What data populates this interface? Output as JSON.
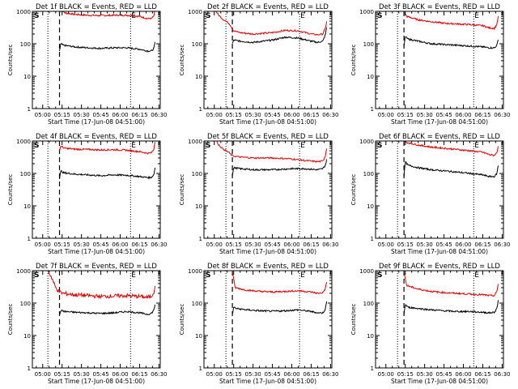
{
  "figure": {
    "common": {
      "xlabel": "Start Time (17-Jun-08 04:51:00)",
      "ylabel": "Counts/sec",
      "x_tick_labels": [
        "05:00",
        "05:15",
        "05:30",
        "05:45",
        "06:00",
        "06:15",
        "06:30"
      ],
      "y_tick_labels": [
        "1",
        "10",
        "100",
        "1000"
      ],
      "marker_S": "S",
      "marker_E": "E",
      "series_colors": {
        "events": "#000000",
        "lld": "#e00000"
      }
    }
  },
  "chart_data": [
    {
      "type": "line",
      "title": "Det 1f BLACK = Events, RED = LLD",
      "ylog": true,
      "ylim": [
        1,
        1000
      ],
      "x_ticks": [
        "05:00",
        "05:15",
        "05:30",
        "05:45",
        "06:00",
        "06:15",
        "06:30"
      ],
      "dotted_lines_x": [
        "05:04",
        "06:08"
      ],
      "dashed_line_x": "05:13",
      "series": [
        {
          "color": "#e00000",
          "x": [
            "05:13",
            "05:14",
            "05:17",
            "05:25",
            "05:35",
            "05:45",
            "05:55",
            "06:05",
            "06:15",
            "06:21",
            "06:24",
            "06:26",
            "06:27"
          ],
          "values": [
            900,
            1200,
            900,
            800,
            760,
            740,
            760,
            760,
            700,
            600,
            600,
            700,
            1100
          ]
        },
        {
          "color": "#000000",
          "x": [
            "05:13",
            "05:14",
            "05:16",
            "05:25",
            "05:35",
            "05:45",
            "05:55",
            "06:05",
            "06:15",
            "06:21",
            "06:24",
            "06:26",
            "06:27"
          ],
          "values": [
            60,
            100,
            90,
            80,
            75,
            72,
            75,
            75,
            68,
            60,
            60,
            70,
            110
          ]
        }
      ]
    },
    {
      "type": "line",
      "title": "Det 2f BLACK = Events, RED = LLD",
      "ylog": true,
      "ylim": [
        1,
        1000
      ],
      "x_ticks": [
        "05:00",
        "05:15",
        "05:30",
        "05:45",
        "06:00",
        "06:15",
        "06:30"
      ],
      "dotted_lines_x": [
        "05:09",
        "06:06"
      ],
      "dashed_line_x": "05:14",
      "series": [
        {
          "color": "#e00000",
          "x": [
            "04:58",
            "05:00",
            "05:03",
            "05:06",
            "05:09",
            "05:12",
            "05:15",
            "05:20",
            "05:30",
            "05:45",
            "05:55",
            "06:05",
            "06:15",
            "06:20",
            "06:24",
            "06:26",
            "06:27"
          ],
          "values": [
            1200,
            1200,
            800,
            600,
            500,
            400,
            250,
            220,
            200,
            220,
            260,
            250,
            200,
            190,
            200,
            300,
            500
          ]
        },
        {
          "color": "#000000",
          "x": [
            "05:14",
            "05:15",
            "05:20",
            "05:30",
            "05:45",
            "05:55",
            "06:05",
            "06:15",
            "06:20",
            "06:24",
            "06:26",
            "06:27"
          ],
          "values": [
            100,
            130,
            120,
            110,
            130,
            160,
            150,
            120,
            110,
            120,
            190,
            320
          ]
        }
      ]
    },
    {
      "type": "line",
      "title": "Det 3f BLACK = Events, RED = LLD",
      "ylog": true,
      "ylim": [
        1,
        1000
      ],
      "x_ticks": [
        "05:00",
        "05:15",
        "05:30",
        "05:45",
        "06:00",
        "06:15",
        "06:30"
      ],
      "dotted_lines_x": [
        "05:09",
        "06:08"
      ],
      "dashed_line_x": "05:14",
      "series": [
        {
          "color": "#e00000",
          "x": [
            "05:14",
            "05:16",
            "05:25",
            "05:35",
            "05:45",
            "05:55",
            "06:05",
            "06:15",
            "06:20",
            "06:24",
            "06:26",
            "06:27"
          ],
          "values": [
            1000,
            700,
            550,
            480,
            430,
            410,
            390,
            360,
            310,
            300,
            400,
            700
          ]
        },
        {
          "color": "#000000",
          "x": [
            "05:14",
            "05:15",
            "05:17",
            "05:25",
            "05:35",
            "05:45",
            "05:55",
            "06:05",
            "06:15",
            "06:20",
            "06:24",
            "06:26",
            "06:27"
          ],
          "values": [
            80,
            170,
            140,
            120,
            100,
            95,
            90,
            85,
            80,
            75,
            75,
            90,
            140
          ]
        }
      ]
    },
    {
      "type": "line",
      "title": "Det 4f BLACK = Events, RED = LLD",
      "ylog": true,
      "ylim": [
        1,
        1000
      ],
      "x_ticks": [
        "05:00",
        "05:15",
        "05:30",
        "05:45",
        "06:00",
        "06:15",
        "06:30"
      ],
      "dotted_lines_x": [
        "05:04",
        "06:08"
      ],
      "dashed_line_x": "05:13",
      "series": [
        {
          "color": "#e00000",
          "x": [
            "05:13",
            "05:14",
            "05:17",
            "05:25",
            "05:35",
            "05:45",
            "05:55",
            "06:05",
            "06:15",
            "06:21",
            "06:24",
            "06:26",
            "06:27"
          ],
          "values": [
            500,
            700,
            600,
            560,
            550,
            530,
            540,
            520,
            470,
            420,
            430,
            550,
            1000
          ]
        },
        {
          "color": "#000000",
          "x": [
            "05:13",
            "05:14",
            "05:16",
            "05:25",
            "05:35",
            "05:45",
            "05:55",
            "06:05",
            "06:15",
            "06:21",
            "06:24",
            "06:26",
            "06:27"
          ],
          "values": [
            70,
            120,
            105,
            95,
            90,
            85,
            90,
            88,
            80,
            75,
            75,
            90,
            150
          ]
        }
      ]
    },
    {
      "type": "line",
      "title": "Det 5f BLACK = Events, RED = LLD",
      "ylog": true,
      "ylim": [
        1,
        1000
      ],
      "x_ticks": [
        "05:00",
        "05:15",
        "05:30",
        "05:45",
        "06:00",
        "06:15",
        "06:30"
      ],
      "dotted_lines_x": [
        "05:09",
        "06:06"
      ],
      "dashed_line_x": "05:14",
      "series": [
        {
          "color": "#e00000",
          "x": [
            "04:58",
            "05:01",
            "05:03",
            "05:06",
            "05:09",
            "05:11",
            "05:14",
            "05:20",
            "05:30",
            "05:45",
            "06:00",
            "06:10",
            "06:20",
            "06:24",
            "06:26",
            "06:27"
          ],
          "values": [
            1200,
            1200,
            800,
            600,
            500,
            450,
            350,
            320,
            300,
            300,
            280,
            250,
            230,
            240,
            350,
            600
          ]
        },
        {
          "color": "#000000",
          "x": [
            "05:14",
            "05:15",
            "05:20",
            "05:30",
            "05:45",
            "06:00",
            "06:10",
            "06:20",
            "06:24",
            "06:26",
            "06:27"
          ],
          "values": [
            90,
            150,
            140,
            130,
            130,
            140,
            140,
            130,
            140,
            180,
            260
          ]
        }
      ]
    },
    {
      "type": "line",
      "title": "Det 6f BLACK = Events, RED = LLD",
      "ylog": true,
      "ylim": [
        1,
        1000
      ],
      "x_ticks": [
        "05:00",
        "05:15",
        "05:30",
        "05:45",
        "06:00",
        "06:15",
        "06:30"
      ],
      "dotted_lines_x": [
        "05:09",
        "06:08"
      ],
      "dashed_line_x": "05:14",
      "series": [
        {
          "color": "#e00000",
          "x": [
            "05:14",
            "05:16",
            "05:25",
            "05:35",
            "05:45",
            "05:55",
            "06:05",
            "06:15",
            "06:20",
            "06:24",
            "06:26",
            "06:27"
          ],
          "values": [
            1000,
            900,
            750,
            650,
            600,
            550,
            500,
            450,
            380,
            360,
            450,
            700
          ]
        },
        {
          "color": "#000000",
          "x": [
            "05:14",
            "05:15",
            "05:17",
            "05:25",
            "05:35",
            "05:45",
            "05:55",
            "06:05",
            "06:15",
            "06:20",
            "06:24",
            "06:26",
            "06:27"
          ],
          "values": [
            80,
            230,
            180,
            150,
            130,
            120,
            110,
            100,
            90,
            80,
            80,
            100,
            180
          ]
        }
      ]
    },
    {
      "type": "line",
      "title": "Det 7f BLACK = Events, RED = LLD",
      "ylog": true,
      "ylim": [
        1,
        1000
      ],
      "x_ticks": [
        "05:00",
        "05:15",
        "05:30",
        "05:45",
        "06:00",
        "06:15",
        "06:30"
      ],
      "dotted_lines_x": [
        "05:04",
        "06:08"
      ],
      "dashed_line_x": "05:13",
      "series": [
        {
          "color": "#e00000",
          "x": [
            "05:04",
            "05:07",
            "05:10",
            "05:13",
            "05:16",
            "05:25",
            "05:35",
            "05:45",
            "05:55",
            "06:05",
            "06:15",
            "06:21",
            "06:24",
            "06:26",
            "06:27"
          ],
          "values": [
            1000,
            600,
            300,
            220,
            200,
            180,
            170,
            160,
            165,
            170,
            160,
            150,
            160,
            220,
            350
          ]
        },
        {
          "color": "#000000",
          "x": [
            "05:13",
            "05:14",
            "05:17",
            "05:25",
            "05:35",
            "05:45",
            "05:55",
            "06:05",
            "06:15",
            "06:21",
            "06:24",
            "06:26",
            "06:27"
          ],
          "values": [
            40,
            60,
            55,
            52,
            50,
            48,
            50,
            55,
            50,
            45,
            48,
            60,
            90
          ]
        }
      ]
    },
    {
      "type": "line",
      "title": "Det 8f BLACK = Events, RED = LLD",
      "ylog": true,
      "ylim": [
        1,
        1000
      ],
      "x_ticks": [
        "05:00",
        "05:15",
        "05:30",
        "05:45",
        "06:00",
        "06:15",
        "06:30"
      ],
      "dotted_lines_x": [
        "05:09",
        "06:06"
      ],
      "dashed_line_x": "05:14",
      "series": [
        {
          "color": "#e00000",
          "x": [
            "05:14",
            "05:16",
            "05:25",
            "05:35",
            "05:45",
            "05:55",
            "06:05",
            "06:15",
            "06:20",
            "06:24",
            "06:26",
            "06:27"
          ],
          "values": [
            1000,
            300,
            250,
            230,
            220,
            230,
            240,
            220,
            200,
            210,
            280,
            450
          ]
        },
        {
          "color": "#000000",
          "x": [
            "05:14",
            "05:15",
            "05:17",
            "05:25",
            "05:35",
            "05:45",
            "05:55",
            "06:05",
            "06:15",
            "06:20",
            "06:24",
            "06:26",
            "06:27"
          ],
          "values": [
            45,
            75,
            68,
            62,
            58,
            56,
            58,
            62,
            55,
            50,
            50,
            65,
            110
          ]
        }
      ]
    },
    {
      "type": "line",
      "title": "Det 9f BLACK = Events, RED = LLD",
      "ylog": true,
      "ylim": [
        1,
        1000
      ],
      "x_ticks": [
        "05:00",
        "05:15",
        "05:30",
        "05:45",
        "06:00",
        "06:15",
        "06:30"
      ],
      "dotted_lines_x": [
        "05:09",
        "06:08"
      ],
      "dashed_line_x": "05:14",
      "series": [
        {
          "color": "#e00000",
          "x": [
            "05:14",
            "05:16",
            "05:25",
            "05:35",
            "05:45",
            "05:55",
            "06:05",
            "06:15",
            "06:20",
            "06:24",
            "06:26",
            "06:27"
          ],
          "values": [
            1000,
            350,
            270,
            230,
            210,
            200,
            190,
            180,
            170,
            170,
            230,
            400
          ]
        },
        {
          "color": "#000000",
          "x": [
            "05:14",
            "05:15",
            "05:17",
            "05:25",
            "05:35",
            "05:45",
            "05:55",
            "06:05",
            "06:15",
            "06:20",
            "06:24",
            "06:26",
            "06:27"
          ],
          "values": [
            45,
            90,
            75,
            68,
            62,
            58,
            55,
            55,
            52,
            50,
            52,
            70,
            120
          ]
        }
      ]
    }
  ]
}
